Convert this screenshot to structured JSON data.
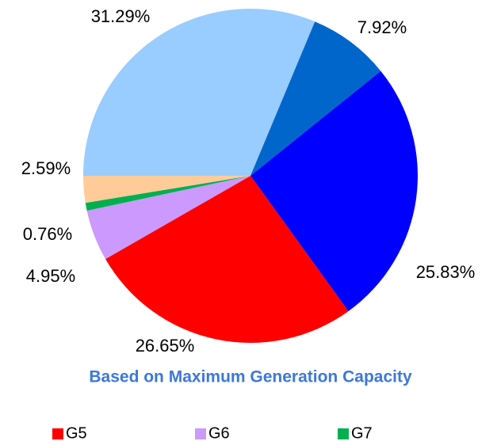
{
  "chart_data": {
    "type": "pie",
    "title": "Based on Maximum Generation Capacity",
    "categories": [
      null,
      null,
      null,
      "G5",
      "G6",
      "G7",
      null
    ],
    "values": [
      31.29,
      7.92,
      25.83,
      26.65,
      4.95,
      0.76,
      2.59
    ],
    "value_labels": [
      "31.29%",
      "7.92%",
      "25.83%",
      "26.65%",
      "4.95%",
      "0.76%",
      "2.59%"
    ],
    "colors": [
      "#99ccff",
      "#0066cc",
      "#0000ff",
      "#ff0000",
      "#cc99ff",
      "#00b050",
      "#ffcc99"
    ]
  }
}
